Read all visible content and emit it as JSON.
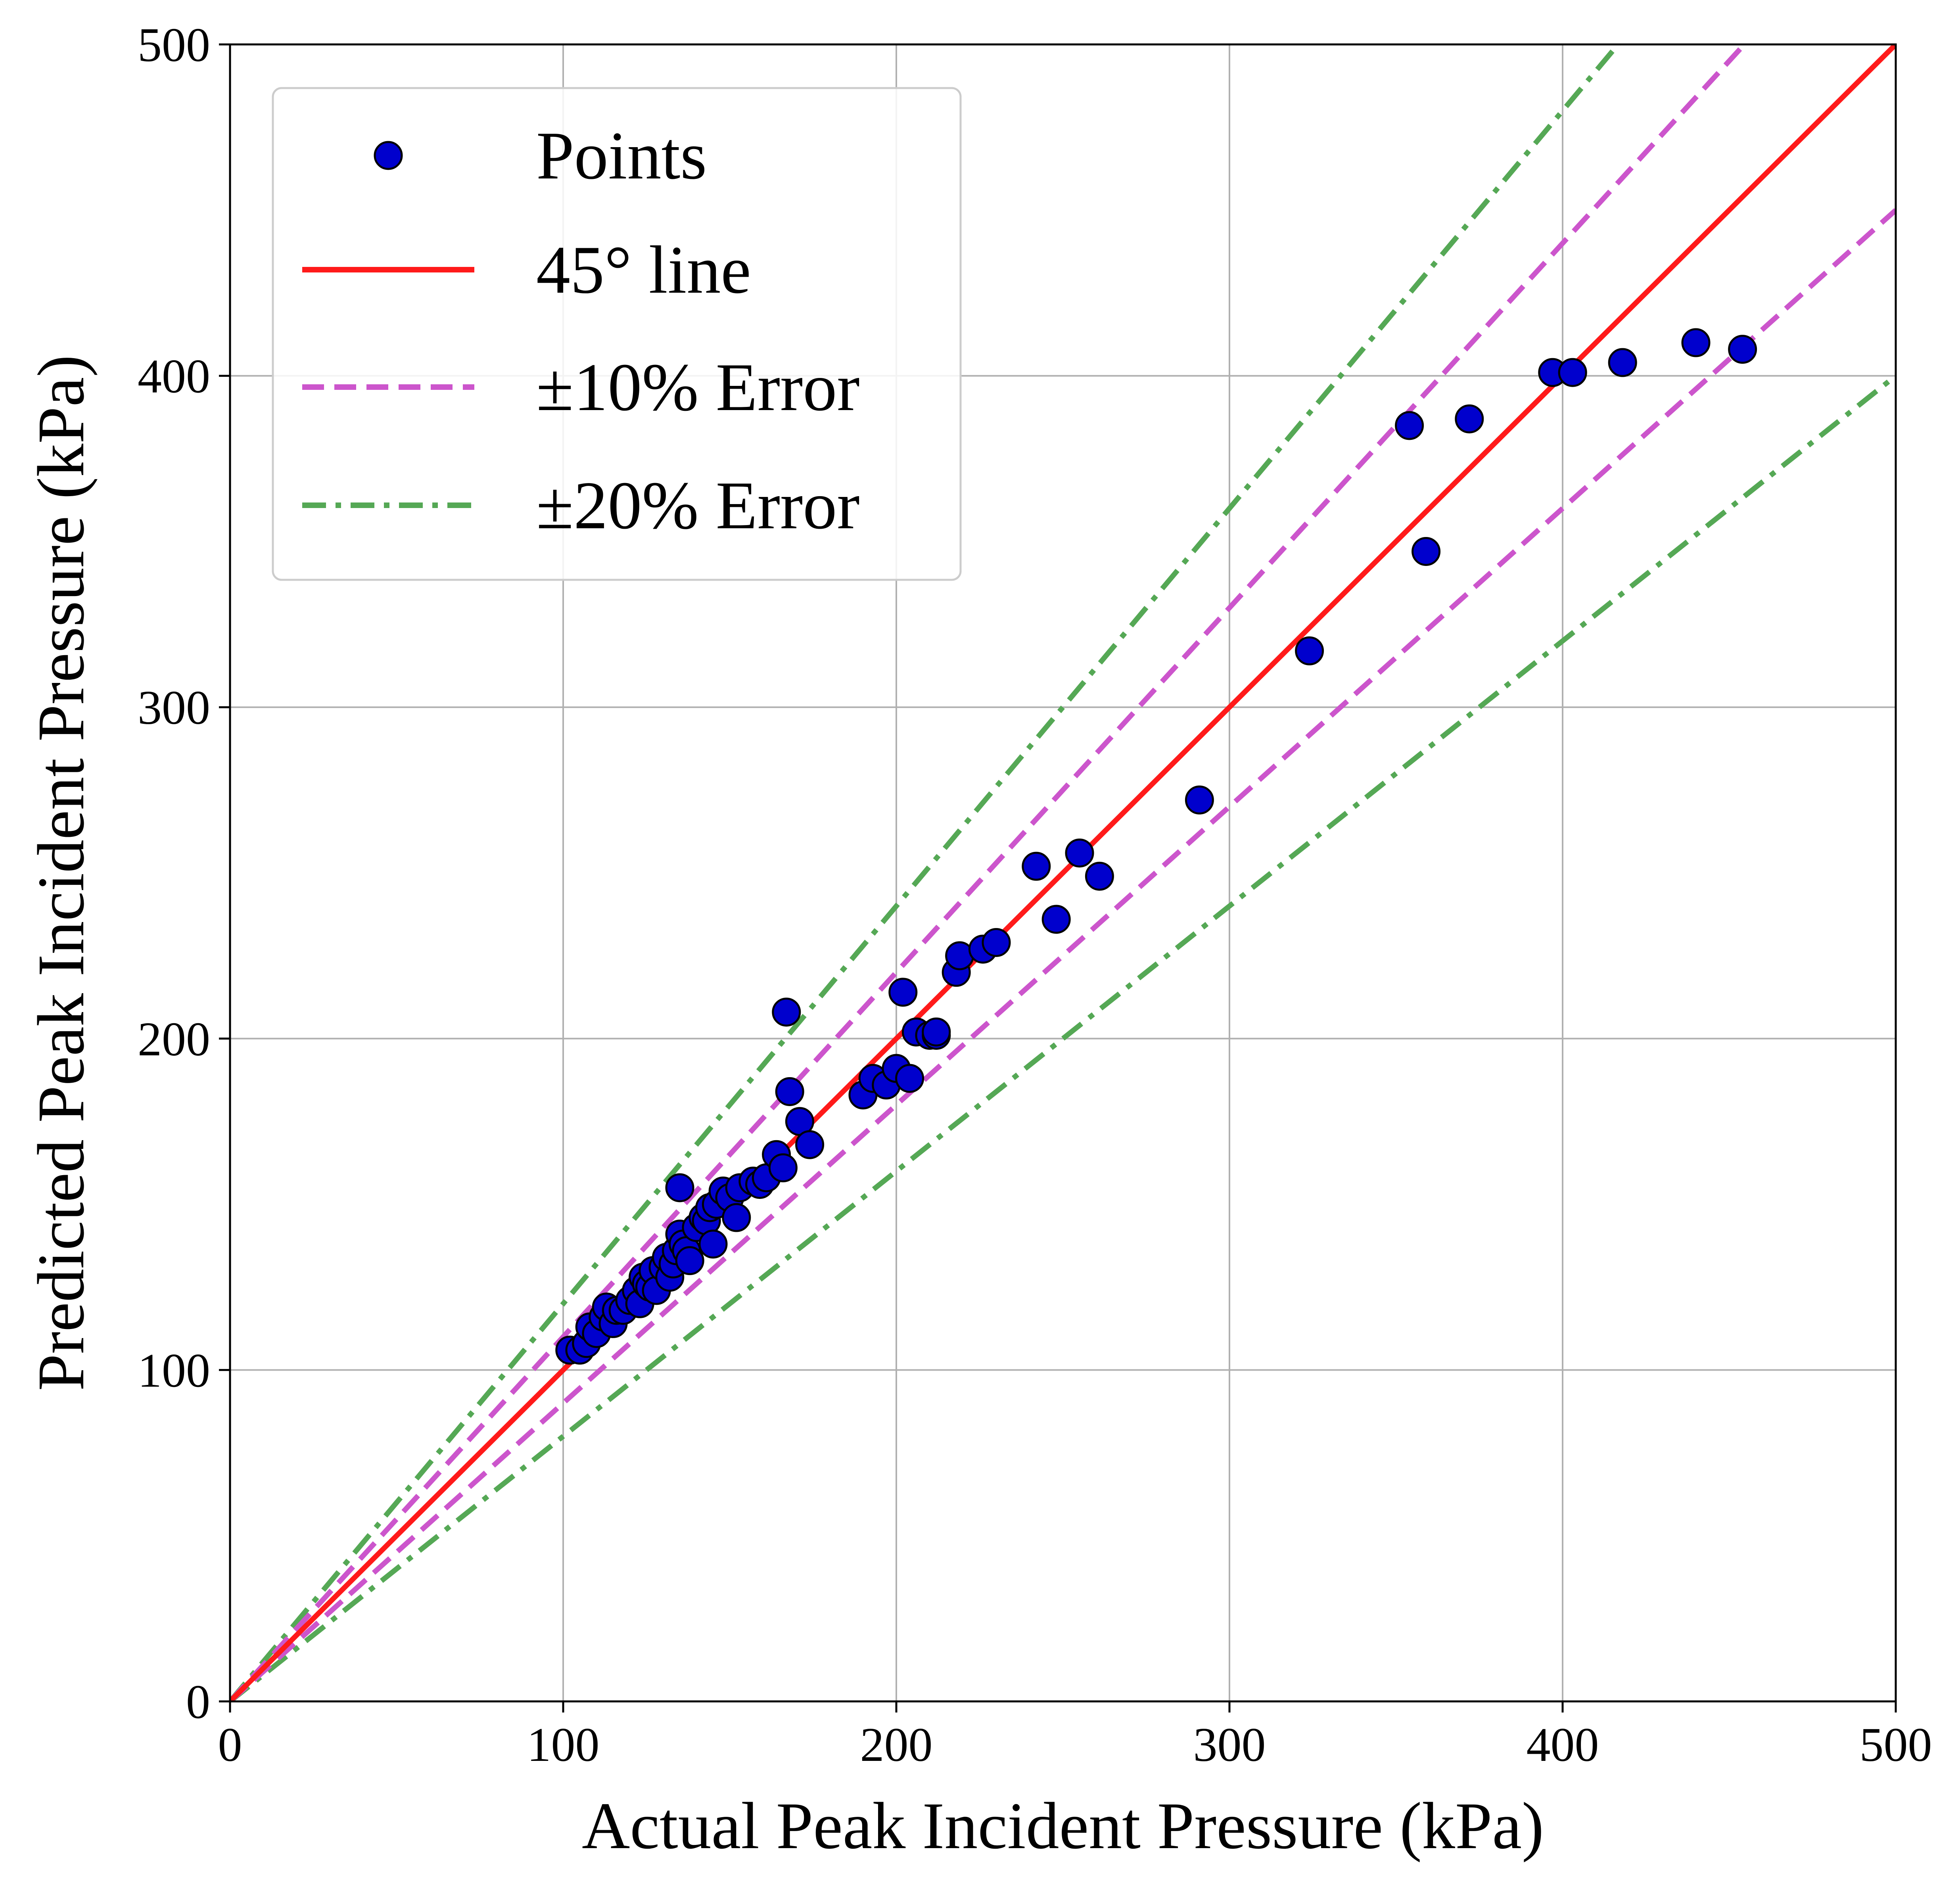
{
  "chart_data": {
    "type": "scatter",
    "xlabel": "Actual Peak Incident Pressure (kPa)",
    "ylabel": "Predicted Peak Incident Pressure (kPa)",
    "xlim": [
      0,
      500
    ],
    "ylim": [
      0,
      500
    ],
    "xticks": [
      "0",
      "100",
      "200",
      "300",
      "400",
      "500"
    ],
    "yticks": [
      "0",
      "100",
      "200",
      "300",
      "400",
      "500"
    ],
    "grid": true,
    "legend_position": "upper-left",
    "legend": [
      "Points",
      "45° line",
      "±10% Error",
      "±20% Error"
    ],
    "colors": {
      "points_fill": "#0000cd",
      "points_edge": "#000000",
      "line_45": "#ff1a1a",
      "error_10": "#cc55cc",
      "error_20": "#55a855",
      "grid": "#b0b0b0"
    },
    "reference_lines": [
      {
        "name": "45° line",
        "slope": 1.0,
        "style": "solid",
        "color": "#ff1a1a"
      },
      {
        "name": "±10% Error",
        "slope": 1.1,
        "style": "dashed",
        "color": "#cc55cc"
      },
      {
        "name": "±10% Error",
        "slope": 0.9,
        "style": "dashed",
        "color": "#cc55cc"
      },
      {
        "name": "±20% Error",
        "slope": 1.2,
        "style": "dashdot",
        "color": "#55a855"
      },
      {
        "name": "±20% Error",
        "slope": 0.8,
        "style": "dashdot",
        "color": "#55a855"
      }
    ],
    "series": [
      {
        "name": "Points",
        "points": [
          [
            102,
            106
          ],
          [
            105,
            106
          ],
          [
            107,
            108
          ],
          [
            108,
            113
          ],
          [
            110,
            111
          ],
          [
            112,
            116
          ],
          [
            113,
            119
          ],
          [
            115,
            114
          ],
          [
            116,
            118
          ],
          [
            118,
            118
          ],
          [
            120,
            121
          ],
          [
            122,
            124
          ],
          [
            123,
            120
          ],
          [
            124,
            128
          ],
          [
            125,
            126
          ],
          [
            126,
            125
          ],
          [
            127,
            130
          ],
          [
            128,
            124
          ],
          [
            130,
            131
          ],
          [
            131,
            134
          ],
          [
            132,
            128
          ],
          [
            133,
            132
          ],
          [
            134,
            136
          ],
          [
            135,
            141
          ],
          [
            135,
            155
          ],
          [
            136,
            138
          ],
          [
            137,
            136
          ],
          [
            138,
            133
          ],
          [
            140,
            143
          ],
          [
            142,
            146
          ],
          [
            143,
            145
          ],
          [
            144,
            149
          ],
          [
            145,
            138
          ],
          [
            146,
            150
          ],
          [
            148,
            154
          ],
          [
            150,
            152
          ],
          [
            152,
            146
          ],
          [
            153,
            155
          ],
          [
            157,
            157
          ],
          [
            159,
            156
          ],
          [
            161,
            158
          ],
          [
            164,
            165
          ],
          [
            166,
            161
          ],
          [
            167,
            208
          ],
          [
            168,
            184
          ],
          [
            171,
            175
          ],
          [
            174,
            168
          ],
          [
            190,
            183
          ],
          [
            193,
            188
          ],
          [
            197,
            186
          ],
          [
            200,
            191
          ],
          [
            202,
            214
          ],
          [
            204,
            188
          ],
          [
            206,
            202
          ],
          [
            210,
            201
          ],
          [
            212,
            201
          ],
          [
            212,
            202
          ],
          [
            218,
            220
          ],
          [
            219,
            225
          ],
          [
            226,
            227
          ],
          [
            230,
            229
          ],
          [
            242,
            252
          ],
          [
            248,
            236
          ],
          [
            255,
            256
          ],
          [
            261,
            249
          ],
          [
            291,
            272
          ],
          [
            324,
            317
          ],
          [
            354,
            385
          ],
          [
            359,
            347
          ],
          [
            372,
            387
          ],
          [
            397,
            401
          ],
          [
            403,
            401
          ],
          [
            418,
            404
          ],
          [
            440,
            410
          ],
          [
            454,
            408
          ]
        ]
      }
    ]
  }
}
